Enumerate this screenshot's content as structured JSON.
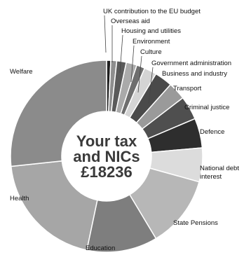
{
  "chart_data": {
    "type": "pie",
    "center_label": [
      "Your tax",
      "and NICs",
      "£18236"
    ],
    "slices": [
      {
        "label": "UK contribution to the EU budget",
        "value": 128,
        "color": "#1e1e1e"
      },
      {
        "label": "Overseas aid",
        "value": 182,
        "color": "#8e8e8e"
      },
      {
        "label": "Housing and utilities",
        "value": 292,
        "color": "#5a5a5a"
      },
      {
        "label": "Environment",
        "value": 328,
        "color": "#aaaaaa"
      },
      {
        "label": "Culture",
        "value": 255,
        "color": "#6e6e6e"
      },
      {
        "label": "Government administration",
        "value": 383,
        "color": "#d4d4d4"
      },
      {
        "label": "Business and industry",
        "value": 547,
        "color": "#4a4a4a"
      },
      {
        "label": "Transport",
        "value": 547,
        "color": "#9a9a9a"
      },
      {
        "label": "Criminal justice",
        "value": 730,
        "color": "#4f4f4f"
      },
      {
        "label": "Defence",
        "value": 912,
        "color": "#2e2e2e"
      },
      {
        "label": "National debt interest",
        "value": 1040,
        "color": "#dcdcdc"
      },
      {
        "label": "State Pensions",
        "value": 2207,
        "color": "#b7b7b7"
      },
      {
        "label": "Education",
        "value": 2170,
        "color": "#7e7e7e"
      },
      {
        "label": "Health",
        "value": 3647,
        "color": "#a6a6a6"
      },
      {
        "label": "Welfare",
        "value": 4868,
        "color": "#8b8b8b"
      }
    ]
  }
}
